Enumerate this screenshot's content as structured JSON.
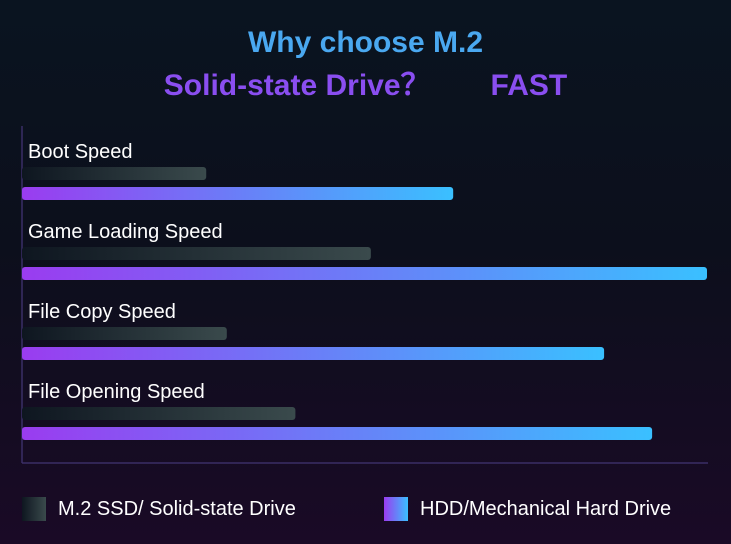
{
  "chart_data": {
    "type": "bar",
    "orientation": "horizontal",
    "title_line1": "Why choose M.2",
    "title_line2": "Solid-state Drive？",
    "title_tag": "FAST",
    "categories": [
      "Boot Speed",
      "Game Loading Speed",
      "File Copy Speed",
      "File Opening Speed"
    ],
    "series": [
      {
        "name": "M.2 SSD/ Solid-state Drive",
        "values": [
          27,
          51,
          30,
          40
        ],
        "gradient": [
          "#0e1620",
          "#3a4a4c"
        ]
      },
      {
        "name": "HDD/Mechanical Hard Drive",
        "values": [
          63,
          100,
          85,
          92
        ],
        "gradient": [
          "#9a3cf0",
          "#3ac0ff"
        ]
      }
    ],
    "xlim": [
      0,
      100
    ],
    "grid": false,
    "legend_position": "bottom"
  },
  "colors": {
    "title_blue": "#4aa8f0",
    "title_purple": "#8a4ef0",
    "axis": "#3a2e66"
  }
}
